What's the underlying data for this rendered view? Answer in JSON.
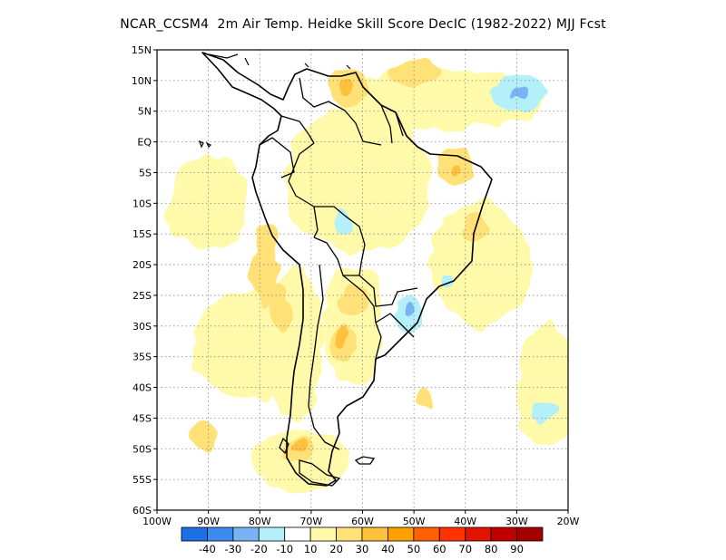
{
  "chart_data": {
    "type": "heatmap",
    "title": "NCAR_CCSM4  2m Air Temp. Heidke Skill Score DecIC (1982-2022) MJJ Fcst",
    "xlim": [
      -100,
      -20
    ],
    "ylim": [
      -60,
      15
    ],
    "x_ticks": [
      {
        "value": -100,
        "label": "100W"
      },
      {
        "value": -90,
        "label": "90W"
      },
      {
        "value": -80,
        "label": "80W"
      },
      {
        "value": -70,
        "label": "70W"
      },
      {
        "value": -60,
        "label": "60W"
      },
      {
        "value": -50,
        "label": "50W"
      },
      {
        "value": -40,
        "label": "40W"
      },
      {
        "value": -30,
        "label": "30W"
      },
      {
        "value": -20,
        "label": "20W"
      }
    ],
    "y_ticks": [
      {
        "value": 15,
        "label": "15N"
      },
      {
        "value": 10,
        "label": "10N"
      },
      {
        "value": 5,
        "label": "5N"
      },
      {
        "value": 0,
        "label": "EQ"
      },
      {
        "value": -5,
        "label": "5S"
      },
      {
        "value": -10,
        "label": "10S"
      },
      {
        "value": -15,
        "label": "15S"
      },
      {
        "value": -20,
        "label": "20S"
      },
      {
        "value": -25,
        "label": "25S"
      },
      {
        "value": -30,
        "label": "30S"
      },
      {
        "value": -35,
        "label": "35S"
      },
      {
        "value": -40,
        "label": "40S"
      },
      {
        "value": -45,
        "label": "45S"
      },
      {
        "value": -50,
        "label": "50S"
      },
      {
        "value": -55,
        "label": "55S"
      },
      {
        "value": -60,
        "label": "60S"
      }
    ],
    "grid": true,
    "colorbar": {
      "colors": [
        "#1e6ee6",
        "#3c8cf0",
        "#78b4f5",
        "#b4f0fa",
        "#ffffff",
        "#fffaaa",
        "#ffe178",
        "#ffc13c",
        "#ffa000",
        "#ff6000",
        "#ff3200",
        "#e11400",
        "#c00000",
        "#a50000"
      ],
      "labels": [
        "-40",
        "-30",
        "-20",
        "-10",
        "10",
        "20",
        "30",
        "40",
        "50",
        "60",
        "70",
        "80",
        "90"
      ]
    },
    "regions": [
      {
        "level": 1,
        "lon": -61,
        "lat": -6,
        "rx": 14,
        "ry": 12
      },
      {
        "level": 1,
        "lon": -82,
        "lat": -33,
        "rx": 11,
        "ry": 9
      },
      {
        "level": 1,
        "lon": -73,
        "lat": -33,
        "rx": 5,
        "ry": 13
      },
      {
        "level": 1,
        "lon": -62,
        "lat": -30,
        "rx": 6,
        "ry": 10
      },
      {
        "level": 1,
        "lon": -72,
        "lat": -52,
        "rx": 10,
        "ry": 5
      },
      {
        "level": 1,
        "lon": -45,
        "lat": 7,
        "rx": 20,
        "ry": 5
      },
      {
        "level": 1,
        "lon": -37,
        "lat": -20,
        "rx": 10,
        "ry": 10
      },
      {
        "level": 1,
        "lon": -90,
        "lat": -10,
        "rx": 8,
        "ry": 8
      },
      {
        "level": 1,
        "lon": -24,
        "lat": -40,
        "rx": 6,
        "ry": 10
      },
      {
        "level": 2,
        "lon": -63,
        "lat": 9,
        "rx": 4,
        "ry": 3
      },
      {
        "level": 2,
        "lon": -42,
        "lat": -4,
        "rx": 4,
        "ry": 3
      },
      {
        "level": 2,
        "lon": -79,
        "lat": -20,
        "rx": 2.5,
        "ry": 7
      },
      {
        "level": 2,
        "lon": -76,
        "lat": -27,
        "rx": 2,
        "ry": 4
      },
      {
        "level": 2,
        "lon": -62,
        "lat": -26,
        "rx": 2.5,
        "ry": 3
      },
      {
        "level": 2,
        "lon": -64,
        "lat": -33,
        "rx": 2.5,
        "ry": 2.5
      },
      {
        "level": 2,
        "lon": -72,
        "lat": -50,
        "rx": 3,
        "ry": 2
      },
      {
        "level": 2,
        "lon": -91,
        "lat": -48,
        "rx": 3,
        "ry": 2
      },
      {
        "level": 2,
        "lon": -50,
        "lat": 11,
        "rx": 5,
        "ry": 2
      },
      {
        "level": 2,
        "lon": -38,
        "lat": -14,
        "rx": 2.5,
        "ry": 2
      },
      {
        "level": 2,
        "lon": -48,
        "lat": -42,
        "rx": 2,
        "ry": 1.5
      },
      {
        "level": 3,
        "lon": -63,
        "lat": 9,
        "rx": 1.5,
        "ry": 1.2
      },
      {
        "level": 3,
        "lon": -64,
        "lat": -32,
        "rx": 1.2,
        "ry": 1.2
      },
      {
        "level": 3,
        "lon": -72,
        "lat": -49.5,
        "rx": 1.3,
        "ry": 1
      },
      {
        "level": 3,
        "lon": -42,
        "lat": -4,
        "rx": 1.3,
        "ry": 1
      },
      {
        "level": -1,
        "lon": -51,
        "lat": -28,
        "rx": 3,
        "ry": 3
      },
      {
        "level": -1,
        "lon": -30,
        "lat": 8,
        "rx": 5,
        "ry": 3
      },
      {
        "level": -1,
        "lon": -25,
        "lat": -44,
        "rx": 3,
        "ry": 2
      },
      {
        "level": -1,
        "lon": -64,
        "lat": -13,
        "rx": 1.5,
        "ry": 2
      },
      {
        "level": -1,
        "lon": -43,
        "lat": -23,
        "rx": 1.5,
        "ry": 1
      },
      {
        "level": -2,
        "lon": -51,
        "lat": -27,
        "rx": 1.2,
        "ry": 1
      },
      {
        "level": -2,
        "lon": -30,
        "lat": 8,
        "rx": 1.2,
        "ry": 1
      }
    ]
  }
}
